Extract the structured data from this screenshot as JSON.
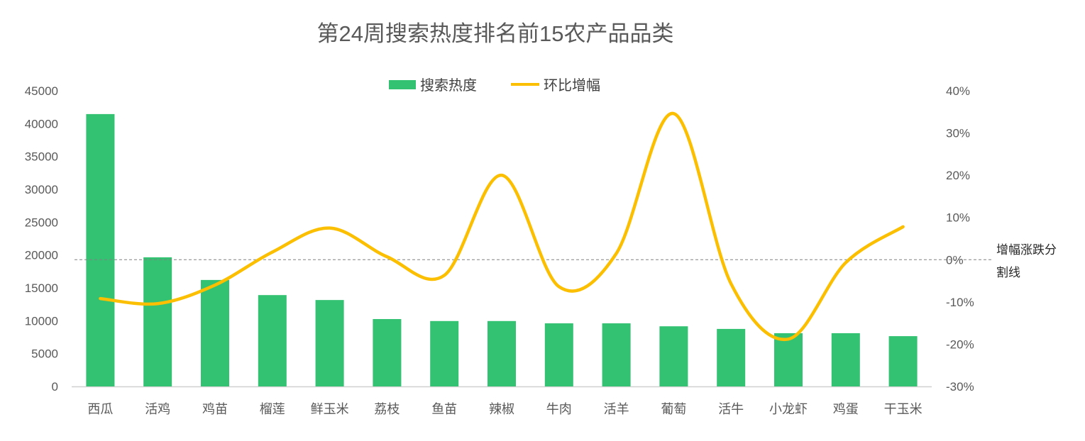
{
  "chart_data": {
    "type": "bar",
    "title": "第24周搜索热度排名前15农产品品类",
    "categories": [
      "西瓜",
      "活鸡",
      "鸡苗",
      "榴莲",
      "鲜玉米",
      "荔枝",
      "鱼苗",
      "辣椒",
      "牛肉",
      "活羊",
      "葡萄",
      "活牛",
      "小龙虾",
      "鸡蛋",
      "干玉米"
    ],
    "series": [
      {
        "name": "搜索热度",
        "type": "bar",
        "axis": "left",
        "color": "#33c172",
        "values": [
          41450,
          19650,
          16200,
          13900,
          13150,
          10250,
          9950,
          9950,
          9600,
          9600,
          9150,
          8750,
          8100,
          8100,
          7650
        ]
      },
      {
        "name": "环比增幅",
        "type": "line",
        "axis": "right",
        "color": "#fbbf00",
        "smooth": true,
        "values": [
          -9.2,
          -10.4,
          -6.0,
          1.8,
          7.5,
          0.7,
          -3.7,
          20.0,
          -6.4,
          1.5,
          34.6,
          -5.7,
          -18.8,
          -0.7,
          7.8
        ]
      }
    ],
    "left_axis": {
      "ylim": [
        0,
        45000
      ],
      "ticks": [
        "0",
        "5000",
        "10000",
        "15000",
        "20000",
        "25000",
        "30000",
        "35000",
        "40000",
        "45000"
      ]
    },
    "right_axis": {
      "ylim": [
        -30,
        40
      ],
      "unit": "%",
      "ticks": [
        "-30%",
        "-20%",
        "-10%",
        "0%",
        "10%",
        "20%",
        "30%",
        "40%"
      ]
    },
    "reference_line": {
      "value": 0,
      "axis": "right",
      "label_line1": "增幅涨跌分",
      "label_line2": "割线",
      "style": "dashed"
    },
    "legend": {
      "position": "top-center"
    },
    "grid": false
  }
}
